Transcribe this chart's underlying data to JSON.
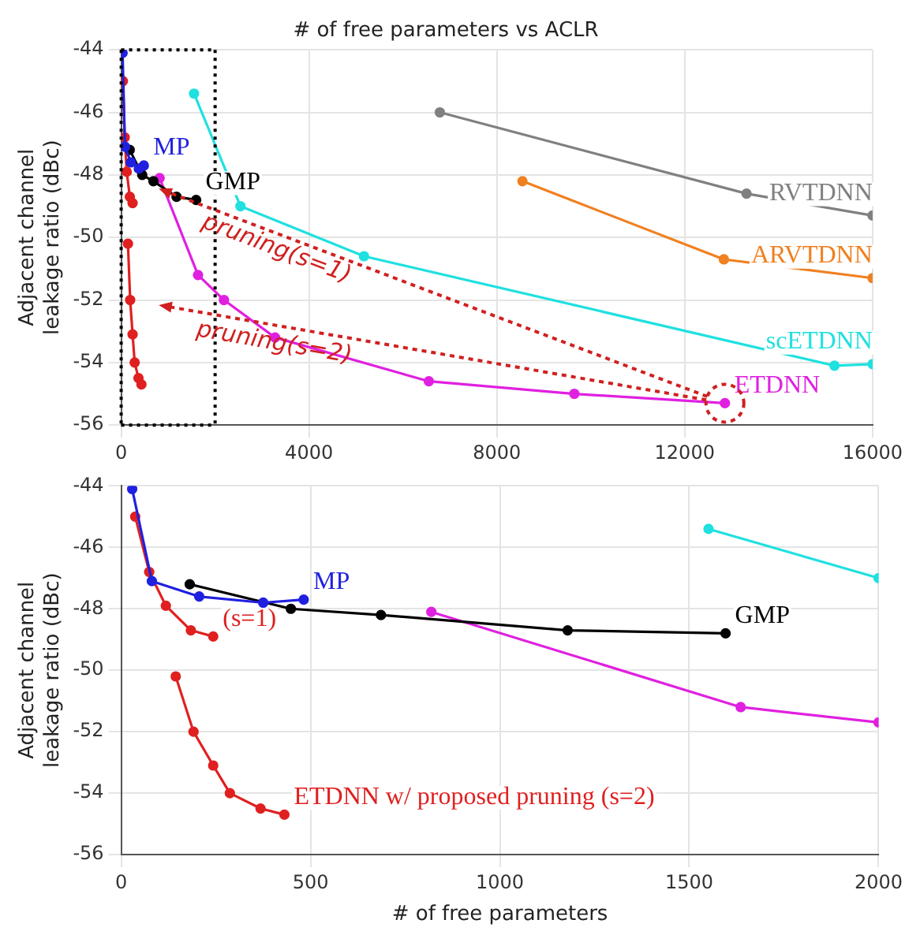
{
  "chart_data": [
    {
      "type": "line",
      "title": "# of free parameters vs ACLR",
      "ylabel": "Adjacent channel leakage ratio (dBc)",
      "xlim": [
        0,
        16000
      ],
      "xticks": [
        0,
        4000,
        8000,
        12000,
        16000
      ],
      "ylim": [
        -56,
        -44
      ],
      "yticks": [
        -56,
        -54,
        -52,
        -50,
        -48,
        -46,
        -44
      ],
      "grid": true,
      "legend": false,
      "marker": "circle",
      "line_style": "solid",
      "annotations": [
        "pruning(s=1)",
        "pruning(s=2)"
      ],
      "ref_lines": [
        {
          "axis": "x",
          "value": 2000,
          "color": "#000000",
          "line_style": "dotted"
        }
      ],
      "series": [
        {
          "name": "MP",
          "color": "#2020e0",
          "x": [
            29,
            81,
            206,
            375,
            482
          ],
          "values": [
            -44.1,
            -47.1,
            -47.6,
            -47.8,
            -47.7
          ]
        },
        {
          "name": "GMP",
          "color": "#000000",
          "x": [
            181,
            448,
            686,
            1179,
            1596
          ],
          "values": [
            -47.2,
            -48.0,
            -48.2,
            -48.7,
            -48.8
          ]
        },
        {
          "color": "#e02020",
          "x": [
            37,
            74,
            118,
            184,
            243
          ],
          "values": [
            -45.0,
            -46.8,
            -47.9,
            -48.7,
            -48.9
          ]
        },
        {
          "color": "#e02020",
          "x": [
            144,
            191,
            243,
            287,
            368,
            431
          ],
          "values": [
            -50.2,
            -52.0,
            -53.1,
            -54.0,
            -54.5,
            -54.7
          ]
        },
        {
          "name": "RVTDNN",
          "color": "#808080",
          "x": [
            6786,
            13317,
            16000
          ],
          "values": [
            -46.0,
            -48.6,
            -49.3
          ]
        },
        {
          "name": "ARVTDNN",
          "color": "#f08020",
          "x": [
            8545,
            12834,
            16000
          ],
          "values": [
            -48.2,
            -50.7,
            -51.3
          ]
        },
        {
          "name": "scETDNN",
          "color": "#20e0e0",
          "x": [
            1551,
            2539,
            5171,
            15190,
            16000
          ],
          "values": [
            -45.4,
            -49.0,
            -50.6,
            -54.1,
            -54.05
          ]
        },
        {
          "name": "ETDNN",
          "color": "#e020e0",
          "x": [
            819,
            1636,
            2188,
            3276,
            6552,
            9650,
            12857
          ],
          "values": [
            -48.1,
            -51.2,
            -52.0,
            -53.2,
            -54.6,
            -55.0,
            -55.3
          ]
        }
      ]
    },
    {
      "type": "line",
      "xlabel": "# of free parameters",
      "ylabel": "Adjacent channel leakage ratio (dBc)",
      "xlim": [
        0,
        2000
      ],
      "xticks": [
        0,
        500,
        1000,
        1500,
        2000
      ],
      "ylim": [
        -56,
        -44
      ],
      "yticks": [
        -56,
        -54,
        -52,
        -50,
        -48,
        -46,
        -44
      ],
      "grid": true,
      "legend": false,
      "marker": "circle",
      "line_style": "solid",
      "series": [
        {
          "name": "MP",
          "color": "#2020e0",
          "x": [
            29,
            81,
            206,
            375,
            482
          ],
          "values": [
            -44.1,
            -47.1,
            -47.6,
            -47.8,
            -47.7
          ]
        },
        {
          "name": "GMP",
          "color": "#000000",
          "x": [
            181,
            448,
            686,
            1179,
            1596
          ],
          "values": [
            -47.2,
            -48.0,
            -48.2,
            -48.7,
            -48.8
          ]
        },
        {
          "name": "(s=1)",
          "color": "#e02020",
          "x": [
            37,
            74,
            118,
            184,
            243
          ],
          "values": [
            -45.0,
            -46.8,
            -47.9,
            -48.7,
            -48.9
          ]
        },
        {
          "name": "ETDNN w/ proposed pruning (s=2)",
          "color": "#e02020",
          "x": [
            144,
            191,
            243,
            287,
            368,
            431
          ],
          "values": [
            -50.2,
            -52.0,
            -53.1,
            -54.0,
            -54.5,
            -54.7
          ]
        },
        {
          "color": "#e020e0",
          "x": [
            819,
            1636,
            2000
          ],
          "values": [
            -48.1,
            -51.2,
            -51.7
          ]
        },
        {
          "color": "#20e0e0",
          "x": [
            1551,
            2000
          ],
          "values": [
            -45.4,
            -47.0
          ]
        }
      ]
    }
  ]
}
